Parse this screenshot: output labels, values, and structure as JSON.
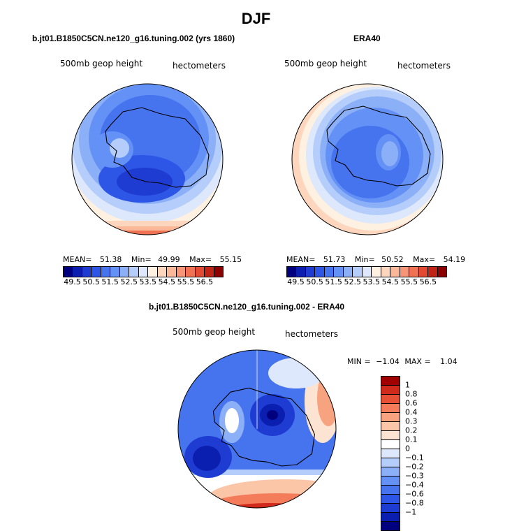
{
  "title": "DJF",
  "colors": {
    "full_palette": [
      "#00007f",
      "#0a1eb0",
      "#1e3cd2",
      "#2d55e6",
      "#4673ee",
      "#6491f5",
      "#8cb0f8",
      "#b4cdfb",
      "#dde8fc",
      "#fff1e1",
      "#fdd6bd",
      "#fbb898",
      "#f69676",
      "#ef7252",
      "#e34a33",
      "#c02417",
      "#8b0000"
    ],
    "diff_palette": [
      "#00007f",
      "#0a1eb0",
      "#1e3cd2",
      "#2d55e6",
      "#4673ee",
      "#6491f5",
      "#8cb0f8",
      "#b4cdfb",
      "#dde8fc",
      "#ffffff",
      "#fde4d2",
      "#fbc6a8",
      "#f8a380",
      "#f47c5a",
      "#e85036",
      "#cf2a1c",
      "#a00000"
    ]
  },
  "panels": {
    "left": {
      "title": "b.jt01.B1850C5CN.ne120_g16.tuning.002 (yrs 1860)",
      "variable": "500mb geop height",
      "units": "hectometers",
      "mean_label": "MEAN=",
      "mean": "51.38",
      "min_label": "Min=",
      "min": "49.99",
      "max_label": "Max=",
      "max": "55.15",
      "colorbar_labels": [
        "49.5",
        "50.5",
        "51.5",
        "52.5",
        "53.5",
        "54.5",
        "55.5",
        "56.5"
      ]
    },
    "right": {
      "title": "ERA40",
      "variable": "500mb geop height",
      "units": "hectometers",
      "mean_label": "MEAN=",
      "mean": "51.73",
      "min_label": "Min=",
      "min": "50.52",
      "max_label": "Max=",
      "max": "54.19",
      "colorbar_labels": [
        "49.5",
        "50.5",
        "51.5",
        "52.5",
        "53.5",
        "54.5",
        "55.5",
        "56.5"
      ]
    },
    "diff": {
      "title": "b.jt01.B1850C5CN.ne120_g16.tuning.002 - ERA40",
      "variable": "500mb geop height",
      "units": "hectometers",
      "min_label": "MIN =",
      "min": "−1.04",
      "max_label": "MAX =",
      "max": "1.04",
      "colorbar_labels": [
        "1",
        "0.8",
        "0.6",
        "0.4",
        "0.3",
        "0.2",
        "0.1",
        "0",
        "−0.1",
        "−0.2",
        "−0.3",
        "−0.4",
        "−0.6",
        "−0.8",
        "−1"
      ]
    }
  }
}
